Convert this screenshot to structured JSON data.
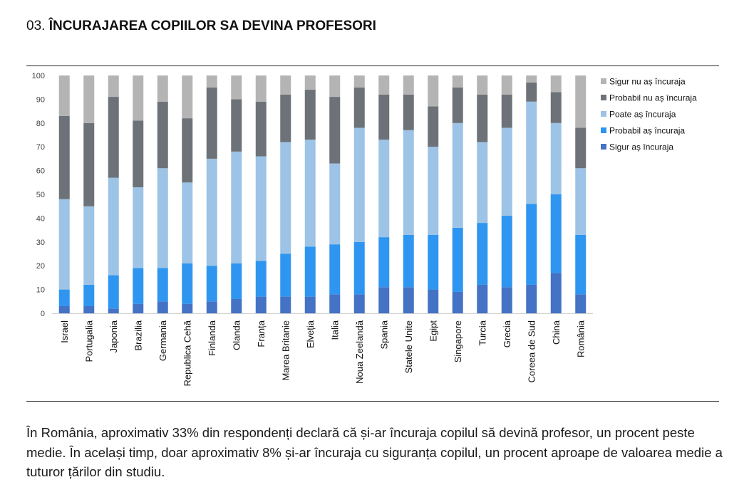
{
  "title": {
    "number": "03.",
    "text": "ÎNCURAJAREA COPIILOR SA DEVINA PROFESORI"
  },
  "chart_data": {
    "type": "bar",
    "stacked": true,
    "title": "ÎNCURAJAREA COPIILOR SA DEVINA PROFESORI",
    "xlabel": "",
    "ylabel": "",
    "ylim": [
      0,
      100
    ],
    "yticks": [
      0,
      10,
      20,
      30,
      40,
      50,
      60,
      70,
      80,
      90,
      100
    ],
    "grid": false,
    "legend_position": "right",
    "categories": [
      "Israel",
      "Portugalia",
      "Japonia",
      "Brazilia",
      "Germania",
      "Republica Cehă",
      "Finlanda",
      "Olanda",
      "Franța",
      "Marea Britanie",
      "Elveția",
      "Italia",
      "Noua Zeelandă",
      "Spania",
      "Statele Unite",
      "Egipt",
      "Singapore",
      "Turcia",
      "Grecia",
      "Coreea de Sud",
      "China",
      "România"
    ],
    "series": [
      {
        "name": "Sigur aș încuraja",
        "color": "#4472c4",
        "values": [
          3,
          3,
          2,
          4,
          5,
          4,
          5,
          6,
          7,
          7,
          7,
          8,
          8,
          11,
          11,
          10,
          9,
          12,
          11,
          12,
          17,
          8
        ]
      },
      {
        "name": "Probabil aș încuraja",
        "color": "#2e96f0",
        "values": [
          7,
          9,
          14,
          15,
          14,
          17,
          15,
          15,
          15,
          18,
          21,
          21,
          22,
          21,
          22,
          23,
          27,
          26,
          30,
          34,
          33,
          25
        ]
      },
      {
        "name": "Poate aș încuraja",
        "color": "#9dc3e6",
        "values": [
          38,
          33,
          41,
          34,
          42,
          34,
          45,
          47,
          44,
          47,
          45,
          34,
          48,
          41,
          44,
          37,
          44,
          34,
          37,
          43,
          30,
          28
        ]
      },
      {
        "name": "Probabil nu aș încuraja",
        "color": "#6d7278",
        "values": [
          35,
          35,
          34,
          28,
          28,
          27,
          30,
          22,
          23,
          20,
          21,
          28,
          17,
          19,
          15,
          17,
          15,
          20,
          14,
          8,
          13,
          17
        ]
      },
      {
        "name": "Sigur nu aș încuraja",
        "color": "#b4b4b4",
        "values": [
          17,
          20,
          9,
          19,
          11,
          18,
          5,
          10,
          11,
          8,
          6,
          9,
          5,
          8,
          8,
          13,
          5,
          8,
          8,
          3,
          7,
          22
        ]
      }
    ]
  },
  "caption": "În România, aproximativ 33% din respondenți declară că și-ar încuraja copilul să devină profesor, un procent peste medie. În același timp, doar aproximativ 8% și-ar încuraja cu siguranța copilul, un procent aproape de valoarea medie a tuturor țărilor din studiu."
}
